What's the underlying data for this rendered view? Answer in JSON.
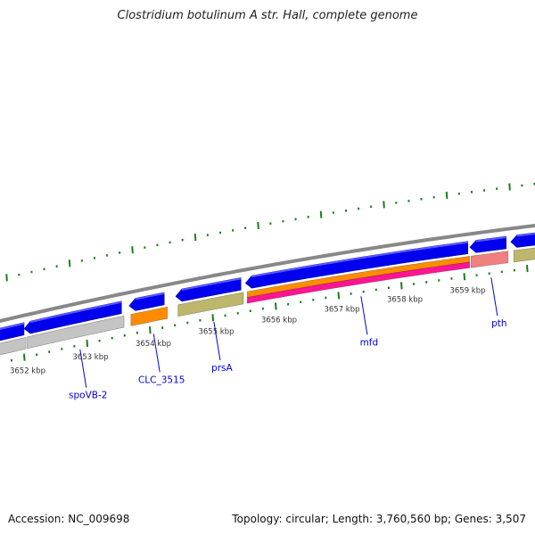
{
  "title": "Clostridium botulinum A str. Hall, complete genome",
  "footer": {
    "accession": "Accession: NC_009698",
    "topology": "Topology: circular; Length: 3,760,560 bp; Genes: 3,507"
  },
  "colors": {
    "backbone": "#888888",
    "cds": "#0000ee",
    "tick": "#1a7f1a",
    "gene_label": "#0000dd",
    "tick_label": "#333333"
  },
  "tick_labels": [
    {
      "kbp": 3652,
      "label": "3652 kbp"
    },
    {
      "kbp": 3653,
      "label": "3653 kbp"
    },
    {
      "kbp": 3654,
      "label": "3654 kbp"
    },
    {
      "kbp": 3655,
      "label": "3655 kbp"
    },
    {
      "kbp": 3656,
      "label": "3656 kbp"
    },
    {
      "kbp": 3657,
      "label": "3657 kbp"
    },
    {
      "kbp": 3658,
      "label": "3658 kbp"
    },
    {
      "kbp": 3659,
      "label": "3659 kbp"
    }
  ],
  "cds_features": [
    {
      "start": 3651.5,
      "end": 3652.0,
      "strand": "-",
      "color": "#0000ee"
    },
    {
      "start": 3652.0,
      "end": 3653.55,
      "strand": "-",
      "color": "#0000ee"
    },
    {
      "start": 3653.67,
      "end": 3654.23,
      "strand": "-",
      "color": "#0000ee"
    },
    {
      "start": 3654.41,
      "end": 3655.45,
      "strand": "-",
      "color": "#0000ee"
    },
    {
      "start": 3655.52,
      "end": 3659.06,
      "strand": "-",
      "color": "#0000ee"
    },
    {
      "start": 3659.09,
      "end": 3659.67,
      "strand": "-",
      "color": "#0000ee"
    },
    {
      "start": 3659.74,
      "end": 3660.2,
      "strand": "-",
      "color": "#0000ee"
    }
  ],
  "gene_features": [
    {
      "start": 3651.5,
      "end": 3652.03,
      "color": "#c4c4c4",
      "part": "full"
    },
    {
      "start": 3652.05,
      "end": 3653.59,
      "color": "#c4c4c4",
      "part": "full"
    },
    {
      "start": 3653.7,
      "end": 3654.28,
      "color": "#ff8c00",
      "part": "full"
    },
    {
      "start": 3654.45,
      "end": 3655.49,
      "color": "#bdb76b",
      "part": "full"
    },
    {
      "start": 3655.55,
      "end": 3659.09,
      "color": "#ff8c00",
      "part": "top"
    },
    {
      "start": 3655.55,
      "end": 3659.09,
      "color": "#ff1493",
      "part": "bottom"
    },
    {
      "start": 3659.11,
      "end": 3659.7,
      "color": "#f08080",
      "part": "full"
    },
    {
      "start": 3659.79,
      "end": 3660.2,
      "color": "#bdb76b",
      "part": "full"
    }
  ],
  "gene_labels": [
    {
      "name": "spoVB-2",
      "kbp": 3652.89
    },
    {
      "name": "CLC_3515",
      "kbp": 3654.06
    },
    {
      "name": "prsA",
      "kbp": 3655.02
    },
    {
      "name": "mfd",
      "kbp": 3657.36
    },
    {
      "name": "pth",
      "kbp": 3659.43
    }
  ]
}
